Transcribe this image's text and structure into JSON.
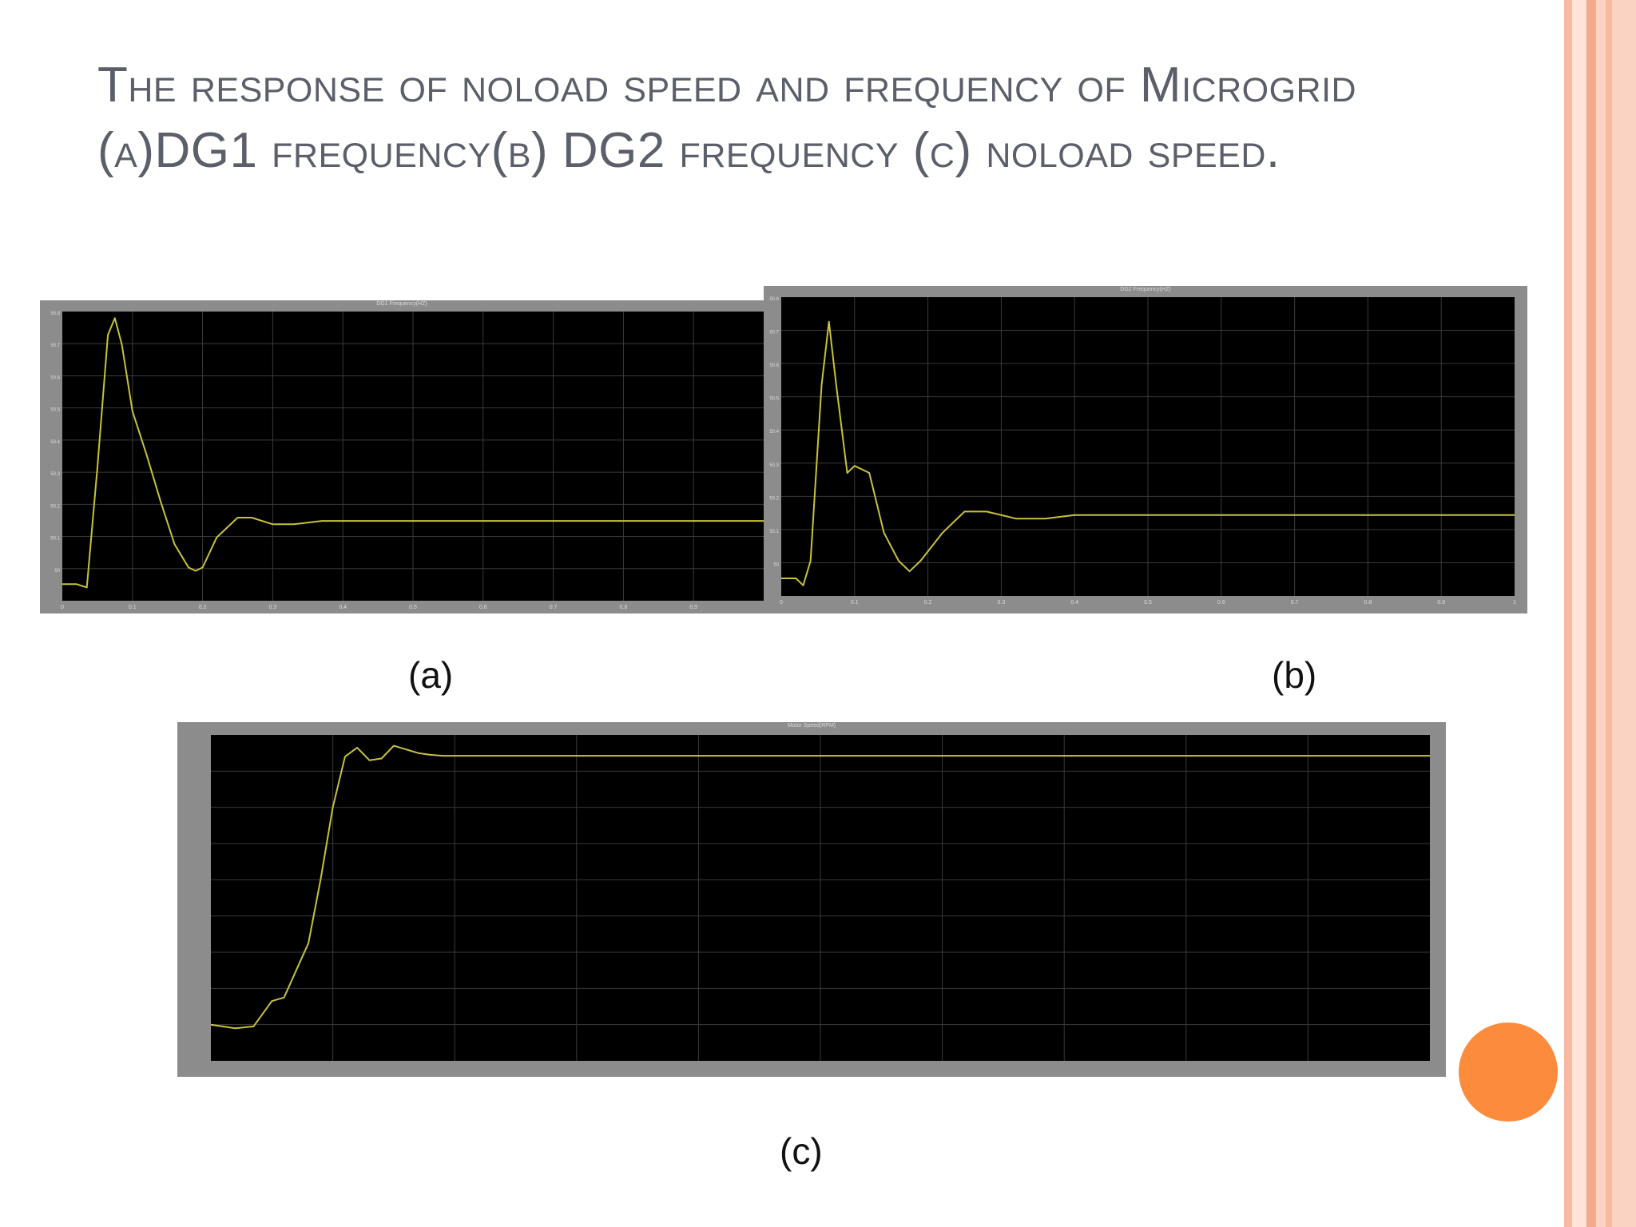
{
  "slide": {
    "title": "The response of noload speed and frequency of Microgrid (a)DG1 frequency(b) DG2 frequency (c) noload speed.",
    "colors": {
      "border_stripes": [
        "#f7b9a2",
        "#fbd3c3",
        "#f5a98c"
      ],
      "accent_dot": "#fd8b3c",
      "scope_frame": "#8c8c8c",
      "scope_plot": "#000000",
      "trace": "#c9c23a",
      "grid": "#3a3a3a"
    }
  },
  "captions": {
    "a": "(a)",
    "b": "(b)",
    "c": "(c)"
  },
  "chart_data": [
    {
      "type": "line",
      "title": "DG1 Frequency(HZ)",
      "x": [
        0,
        0.02,
        0.035,
        0.05,
        0.065,
        0.075,
        0.085,
        0.1,
        0.12,
        0.14,
        0.16,
        0.18,
        0.19,
        0.2,
        0.22,
        0.25,
        0.27,
        0.3,
        0.33,
        0.37,
        0.4,
        0.5,
        0.6,
        0.7,
        0.8,
        0.9,
        1.0
      ],
      "y": [
        50.0,
        50.0,
        49.99,
        50.35,
        50.75,
        50.8,
        50.72,
        50.52,
        50.39,
        50.25,
        50.12,
        50.05,
        50.04,
        50.05,
        50.14,
        50.2,
        50.2,
        50.18,
        50.18,
        50.19,
        50.19,
        50.19,
        50.19,
        50.19,
        50.19,
        50.19,
        50.19
      ],
      "xlim": [
        0,
        1
      ],
      "ylim": [
        49.95,
        50.82
      ],
      "xticks": [
        "0",
        "0.1",
        "0.2",
        "0.3",
        "0.4",
        "0.5",
        "0.6",
        "0.7",
        "0.8",
        "0.9"
      ],
      "yticks": [
        "50.8",
        "50.7",
        "50.6",
        "50.5",
        "50.4",
        "50.3",
        "50.2",
        "50.1",
        "50"
      ],
      "grid": true
    },
    {
      "type": "line",
      "title": "DG2 Frequency(HZ)",
      "x": [
        0,
        0.02,
        0.03,
        0.04,
        0.055,
        0.065,
        0.075,
        0.09,
        0.1,
        0.12,
        0.14,
        0.16,
        0.175,
        0.19,
        0.22,
        0.25,
        0.28,
        0.32,
        0.36,
        0.4,
        0.5,
        0.6,
        0.7,
        0.8,
        0.9,
        1.0
      ],
      "y": [
        50.0,
        50.0,
        49.98,
        50.05,
        50.55,
        50.73,
        50.55,
        50.3,
        50.32,
        50.3,
        50.13,
        50.05,
        50.02,
        50.05,
        50.13,
        50.19,
        50.19,
        50.17,
        50.17,
        50.18,
        50.18,
        50.18,
        50.18,
        50.18,
        50.18,
        50.18
      ],
      "xlim": [
        0,
        1
      ],
      "ylim": [
        49.95,
        50.8
      ],
      "xticks": [
        "0",
        "0.1",
        "0.2",
        "0.3",
        "0.4",
        "0.5",
        "0.6",
        "0.7",
        "0.8",
        "0.9",
        "1"
      ],
      "yticks": [
        "50.8",
        "50.7",
        "50.6",
        "50.5",
        "50.4",
        "50.3",
        "50.2",
        "50.1",
        "50"
      ],
      "grid": true
    },
    {
      "type": "line",
      "title": "Motor Speed(RPM)",
      "x": [
        0,
        0.02,
        0.035,
        0.05,
        0.06,
        0.07,
        0.08,
        0.09,
        0.1,
        0.11,
        0.12,
        0.13,
        0.14,
        0.15,
        0.16,
        0.17,
        0.18,
        0.19,
        0.2,
        0.22,
        0.25,
        0.3,
        0.4,
        0.5,
        0.6,
        0.7,
        0.8,
        0.9,
        1.0
      ],
      "y": [
        0,
        -200,
        -100,
        1300,
        1500,
        3000,
        4500,
        8000,
        12000,
        14800,
        15300,
        14600,
        14700,
        15400,
        15200,
        15000,
        14900,
        14850,
        14850,
        14850,
        14850,
        14850,
        14850,
        14850,
        14850,
        14850,
        14850,
        14850,
        14850
      ],
      "xlim": [
        0,
        1
      ],
      "ylim": [
        -2000,
        16000
      ],
      "grid": true
    }
  ]
}
